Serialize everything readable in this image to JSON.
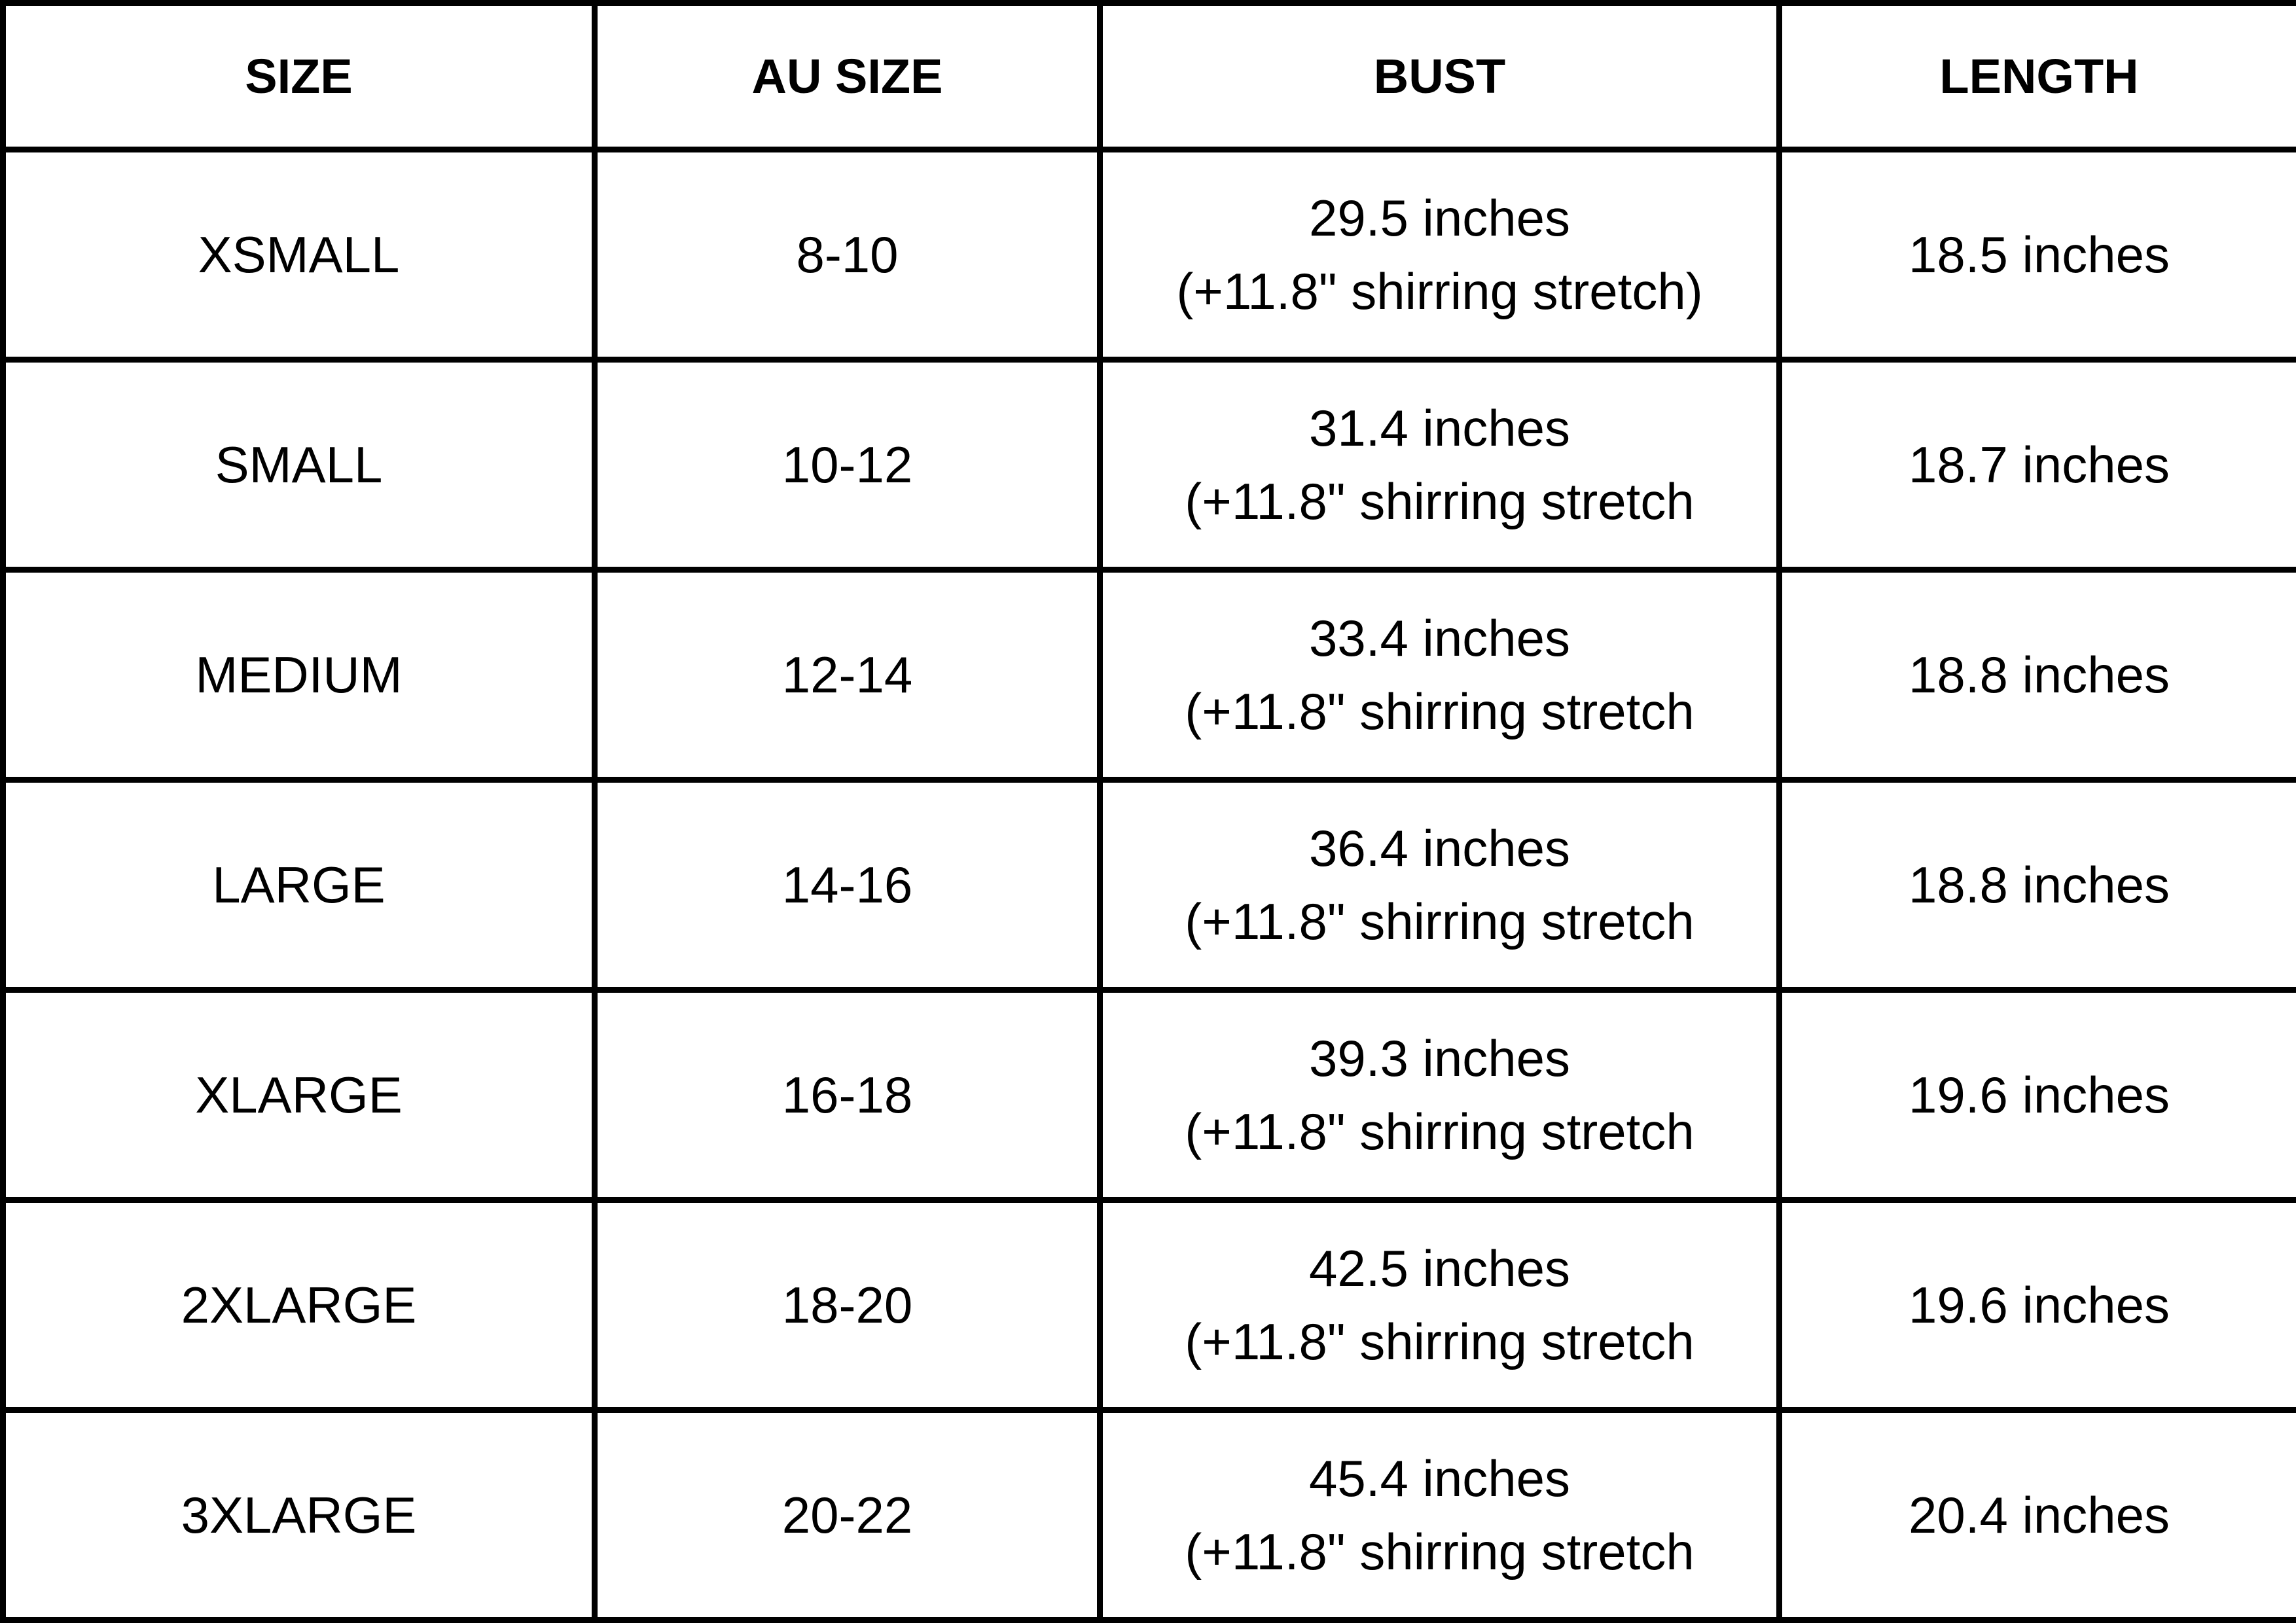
{
  "headers": [
    "SIZE",
    "AU SIZE",
    "BUST",
    "LENGTH"
  ],
  "rows": [
    {
      "size": "XSMALL",
      "au": "8-10",
      "bust": "29.5 inches",
      "bust_note": "(+11.8\" shirring stretch)",
      "length": "18.5 inches"
    },
    {
      "size": "SMALL",
      "au": "10-12",
      "bust": "31.4 inches",
      "bust_note": "(+11.8\" shirring stretch",
      "length": "18.7 inches"
    },
    {
      "size": "MEDIUM",
      "au": "12-14",
      "bust": "33.4 inches",
      "bust_note": "(+11.8\" shirring stretch",
      "length": "18.8 inches"
    },
    {
      "size": "LARGE",
      "au": "14-16",
      "bust": "36.4 inches",
      "bust_note": "(+11.8\" shirring stretch",
      "length": "18.8 inches"
    },
    {
      "size": "XLARGE",
      "au": "16-18",
      "bust": "39.3 inches",
      "bust_note": "(+11.8\" shirring stretch",
      "length": "19.6 inches"
    },
    {
      "size": "2XLARGE",
      "au": "18-20",
      "bust": "42.5 inches",
      "bust_note": "(+11.8\" shirring stretch",
      "length": "19.6 inches"
    },
    {
      "size": "3XLARGE",
      "au": "20-22",
      "bust": "45.4 inches",
      "bust_note": "(+11.8\" shirring stretch",
      "length": "20.4 inches"
    }
  ]
}
